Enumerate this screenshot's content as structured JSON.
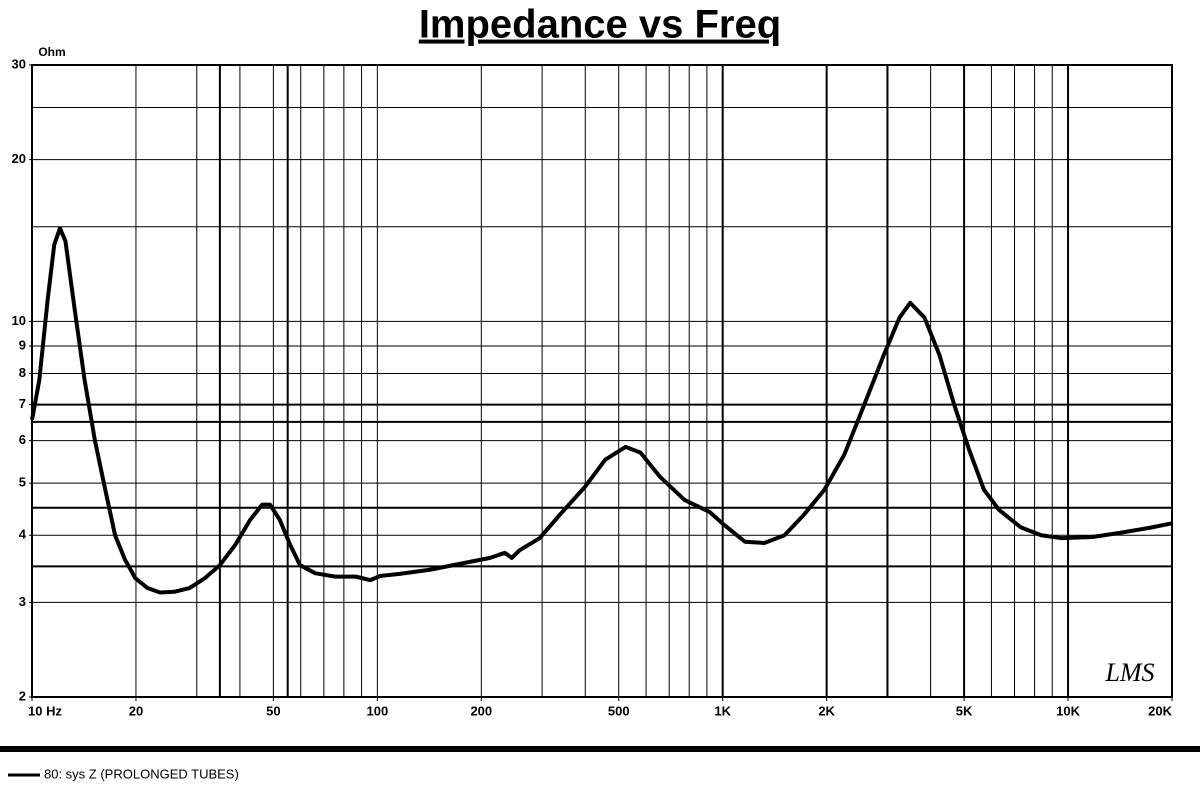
{
  "chart_data": {
    "type": "line",
    "title": "Impedance vs Freq",
    "y_label": "Ohm",
    "annotation": "LMS",
    "log_x": true,
    "log_y": true,
    "xlim": [
      10,
      20000
    ],
    "ylim": [
      2,
      30
    ],
    "xticks": [
      {
        "value": 10,
        "label": "10  Hz"
      },
      20,
      50,
      100,
      200,
      500,
      {
        "value": 1000,
        "label": "1K"
      },
      {
        "value": 2000,
        "label": "2K"
      },
      {
        "value": 5000,
        "label": "5K"
      },
      {
        "value": 10000,
        "label": "10K"
      },
      {
        "value": 20000,
        "label": "20K"
      }
    ],
    "yticks": [
      2,
      3,
      4,
      5,
      6,
      7,
      8,
      9,
      10,
      20,
      30
    ],
    "xgrid": [
      10,
      20,
      30,
      40,
      50,
      60,
      70,
      80,
      90,
      100,
      200,
      300,
      400,
      500,
      600,
      700,
      800,
      900,
      1000,
      2000,
      3000,
      4000,
      5000,
      6000,
      7000,
      8000,
      9000,
      10000,
      20000
    ],
    "ygrid": [
      2,
      3,
      4,
      5,
      6,
      7,
      8,
      9,
      10,
      15,
      20,
      25,
      30
    ],
    "x_ref_lines": [
      35,
      55,
      1000,
      2000,
      3000,
      5000,
      10000
    ],
    "y_ref_lines": [
      3.5,
      4.5,
      6.5,
      7
    ],
    "x": [
      10,
      10.5,
      11.1,
      11.6,
      12.05,
      12.5,
      13.3,
      14.2,
      15.2,
      16.3,
      17.4,
      18.6,
      19.9,
      21.6,
      23.5,
      25.9,
      28.6,
      31.7,
      35,
      38.8,
      42.8,
      46.4,
      48.9,
      52.2,
      55.9,
      59.7,
      66,
      75.5,
      86.6,
      95.4,
      102,
      116,
      142,
      174,
      212,
      234,
      245,
      258,
      295,
      338,
      399,
      457,
      523,
      578,
      658,
      776,
      916,
      1010,
      1160,
      1320,
      1510,
      1720,
      1970,
      2250,
      2570,
      2930,
      3250,
      3490,
      3840,
      4240,
      4680,
      5170,
      5710,
      6310,
      7290,
      8360,
      9590,
      11760,
      14120,
      17260,
      20000
    ],
    "series": [
      {
        "name": "80: sys Z (PROLONGED TUBES)",
        "color": "#000000",
        "values": [
          6.56,
          7.78,
          10.97,
          13.9,
          14.9,
          14.1,
          10.5,
          7.78,
          6.02,
          4.86,
          4.0,
          3.6,
          3.33,
          3.19,
          3.13,
          3.14,
          3.19,
          3.33,
          3.52,
          3.84,
          4.27,
          4.56,
          4.56,
          4.27,
          3.84,
          3.52,
          3.4,
          3.35,
          3.35,
          3.3,
          3.36,
          3.39,
          3.45,
          3.54,
          3.63,
          3.71,
          3.63,
          3.75,
          3.95,
          4.37,
          4.92,
          5.53,
          5.84,
          5.7,
          5.14,
          4.65,
          4.42,
          4.18,
          3.89,
          3.87,
          4.0,
          4.37,
          4.86,
          5.65,
          7.0,
          8.67,
          10.16,
          10.83,
          10.16,
          8.67,
          7.0,
          5.77,
          4.86,
          4.46,
          4.14,
          4.0,
          3.95,
          3.97,
          4.04,
          4.13,
          4.21
        ]
      }
    ]
  }
}
